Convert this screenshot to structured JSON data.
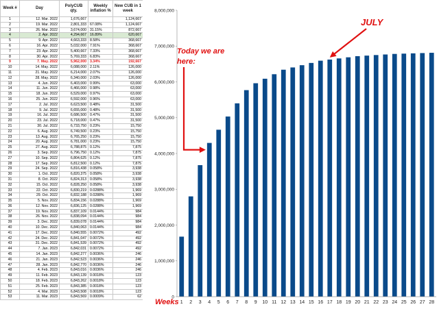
{
  "table": {
    "headers": [
      "Week #",
      "Day",
      "PolyCUB qty.",
      "Weekly inflation %",
      "New CUB in 1 week"
    ],
    "rows": [
      [
        "1",
        "12. Mar. 2022",
        "1,676,667",
        "",
        "1,124,667"
      ],
      [
        "2",
        "19. Mar. 2022",
        "2,801,333",
        "67.08%",
        "1,124,667"
      ],
      [
        "3",
        "26. Mar. 2022",
        "3,674,000",
        "31.15%",
        "872,667"
      ],
      [
        "4",
        "2. Apr. 2022",
        "4,294,667",
        "16.89%",
        "620,667"
      ],
      [
        "5",
        "9. Apr. 2022",
        "4,663,333",
        "8.58%",
        "368,667"
      ],
      [
        "6",
        "16. Apr. 2022",
        "5,032,000",
        "7.91%",
        "368,667"
      ],
      [
        "7",
        "23. Apr. 2022",
        "5,400,667",
        "7.33%",
        "368,667"
      ],
      [
        "8",
        "30. Apr. 2022",
        "5,769,333",
        "6.83%",
        "368,667"
      ],
      [
        "9",
        "7. May. 2022",
        "5,962,000",
        "3.34%",
        "192,667"
      ],
      [
        "10",
        "14. May. 2022",
        "6,088,000",
        "2.11%",
        "126,000"
      ],
      [
        "11",
        "21. May. 2022",
        "6,214,000",
        "2.07%",
        "126,000"
      ],
      [
        "12",
        "28. May. 2022",
        "6,340,000",
        "2.03%",
        "126,000"
      ],
      [
        "13",
        "4. Jun. 2022",
        "6,403,000",
        "0.99%",
        "63,000"
      ],
      [
        "14",
        "11. Jun. 2022",
        "6,466,000",
        "0.98%",
        "63,000"
      ],
      [
        "15",
        "18. Jun. 2022",
        "6,529,000",
        "0.97%",
        "63,000"
      ],
      [
        "16",
        "25. Jun. 2022",
        "6,592,000",
        "0.96%",
        "63,000"
      ],
      [
        "17",
        "2. Jul. 2022",
        "6,623,500",
        "0.48%",
        "31,500"
      ],
      [
        "18",
        "9. Jul. 2022",
        "6,655,000",
        "0.48%",
        "31,500"
      ],
      [
        "19",
        "16. Jul. 2022",
        "6,686,500",
        "0.47%",
        "31,500"
      ],
      [
        "20",
        "23. Jul. 2022",
        "6,718,000",
        "0.47%",
        "31,500"
      ],
      [
        "21",
        "30. Jul. 2022",
        "6,733,750",
        "0.23%",
        "15,750"
      ],
      [
        "22",
        "6. Aug. 2022",
        "6,749,500",
        "0.23%",
        "15,750"
      ],
      [
        "23",
        "13. Aug. 2022",
        "6,765,250",
        "0.23%",
        "15,750"
      ],
      [
        "24",
        "20. Aug. 2022",
        "6,781,000",
        "0.23%",
        "15,750"
      ],
      [
        "25",
        "27. Aug. 2022",
        "6,788,875",
        "0.12%",
        "7,875"
      ],
      [
        "26",
        "3. Sep. 2022",
        "6,796,750",
        "0.12%",
        "7,875"
      ],
      [
        "27",
        "10. Sep. 2022",
        "6,804,625",
        "0.12%",
        "7,875"
      ],
      [
        "28",
        "17. Sep. 2022",
        "6,812,500",
        "0.12%",
        "7,875"
      ],
      [
        "29",
        "24. Sep. 2022",
        "6,816,438",
        "0.058%",
        "3,938"
      ],
      [
        "30",
        "1. Oct. 2022",
        "6,820,375",
        "0.058%",
        "3,938"
      ],
      [
        "31",
        "8. Oct. 2022",
        "6,824,313",
        "0.058%",
        "3,938"
      ],
      [
        "32",
        "15. Oct. 2022",
        "6,828,250",
        "0.058%",
        "3,938"
      ],
      [
        "33",
        "22. Oct. 2022",
        "6,830,219",
        "0.0288%",
        "1,969"
      ],
      [
        "34",
        "29. Oct. 2022",
        "6,832,188",
        "0.0288%",
        "1,969"
      ],
      [
        "35",
        "5. Nov. 2022",
        "6,834,156",
        "0.0288%",
        "1,969"
      ],
      [
        "36",
        "12. Nov. 2022",
        "6,836,125",
        "0.0288%",
        "1,969"
      ],
      [
        "37",
        "19. Nov. 2022",
        "6,837,109",
        "0.0144%",
        "984"
      ],
      [
        "38",
        "26. Nov. 2022",
        "6,838,094",
        "0.0144%",
        "984"
      ],
      [
        "39",
        "3. Dec. 2022",
        "6,839,078",
        "0.0144%",
        "984"
      ],
      [
        "40",
        "10. Dec. 2022",
        "6,840,063",
        "0.0144%",
        "984"
      ],
      [
        "41",
        "17. Dec. 2022",
        "6,840,555",
        "0.0072%",
        "492"
      ],
      [
        "42",
        "24. Dec. 2022",
        "6,841,047",
        "0.0072%",
        "492"
      ],
      [
        "43",
        "31. Dec. 2022",
        "6,841,539",
        "0.0072%",
        "492"
      ],
      [
        "44",
        "7. Jan. 2023",
        "6,842,031",
        "0.0072%",
        "492"
      ],
      [
        "45",
        "14. Jan. 2023",
        "6,842,277",
        "0.0036%",
        "246"
      ],
      [
        "46",
        "21. Jan. 2023",
        "6,842,523",
        "0.0036%",
        "246"
      ],
      [
        "47",
        "28. Jan. 2023",
        "6,842,770",
        "0.0036%",
        "246"
      ],
      [
        "48",
        "4. Feb. 2023",
        "6,843,016",
        "0.0036%",
        "246"
      ],
      [
        "49",
        "11. Feb. 2023",
        "6,843,139",
        "0.0018%",
        "123"
      ],
      [
        "50",
        "18. Feb. 2023",
        "6,843,262",
        "0.0018%",
        "123"
      ],
      [
        "51",
        "25. Feb. 2023",
        "6,843,385",
        "0.0018%",
        "123"
      ],
      [
        "52",
        "4. Mar. 2023",
        "6,843,508",
        "0.0018%",
        "123"
      ],
      [
        "53",
        "11. Mar. 2023",
        "6,843,569",
        "0.0009%",
        "62"
      ]
    ],
    "highlight_green_week": "4",
    "highlight_red_week": "9"
  },
  "chart_data": {
    "type": "bar",
    "title": "",
    "xlabel": "Weeks",
    "ylabel": "",
    "ylim": [
      0,
      8000000
    ],
    "yticks": [
      "0",
      "1,000,000",
      "2,000,000",
      "3,000,000",
      "4,000,000",
      "5,000,000",
      "6,000,000",
      "7,000,000",
      "8,000,000"
    ],
    "grid": false,
    "bar_color": "#0a4a8a",
    "categories": [
      "1",
      "2",
      "3",
      "4",
      "5",
      "6",
      "7",
      "8",
      "9",
      "10",
      "11",
      "12",
      "13",
      "14",
      "15",
      "16",
      "17",
      "18",
      "19",
      "20",
      "21",
      "22",
      "23",
      "24",
      "25",
      "26",
      "27",
      "28"
    ],
    "series": [
      {
        "name": "PolyCUB qty.",
        "values": [
          1676667,
          2801333,
          3674000,
          4294667,
          4663333,
          5032000,
          5400667,
          5769333,
          5962000,
          6088000,
          6214000,
          6340000,
          6403000,
          6466000,
          6529000,
          6592000,
          6623500,
          6655000,
          6686500,
          6718000,
          6733750,
          6749500,
          6765250,
          6781000,
          6788875,
          6796750,
          6804625,
          6812500
        ]
      }
    ],
    "annotations": [
      {
        "text": "Today we are here:",
        "points_to_category": "4"
      },
      {
        "text": "JULY",
        "points_to_category": "17"
      }
    ]
  },
  "annotations": {
    "today_line1": "Today we are",
    "today_line2": "here:",
    "july": "JULY",
    "weeks_label": "Weeks"
  },
  "colors": {
    "annotation_red": "#e01010",
    "bar_blue": "#0a4a8a",
    "green_highlight": "#d9ead3"
  }
}
